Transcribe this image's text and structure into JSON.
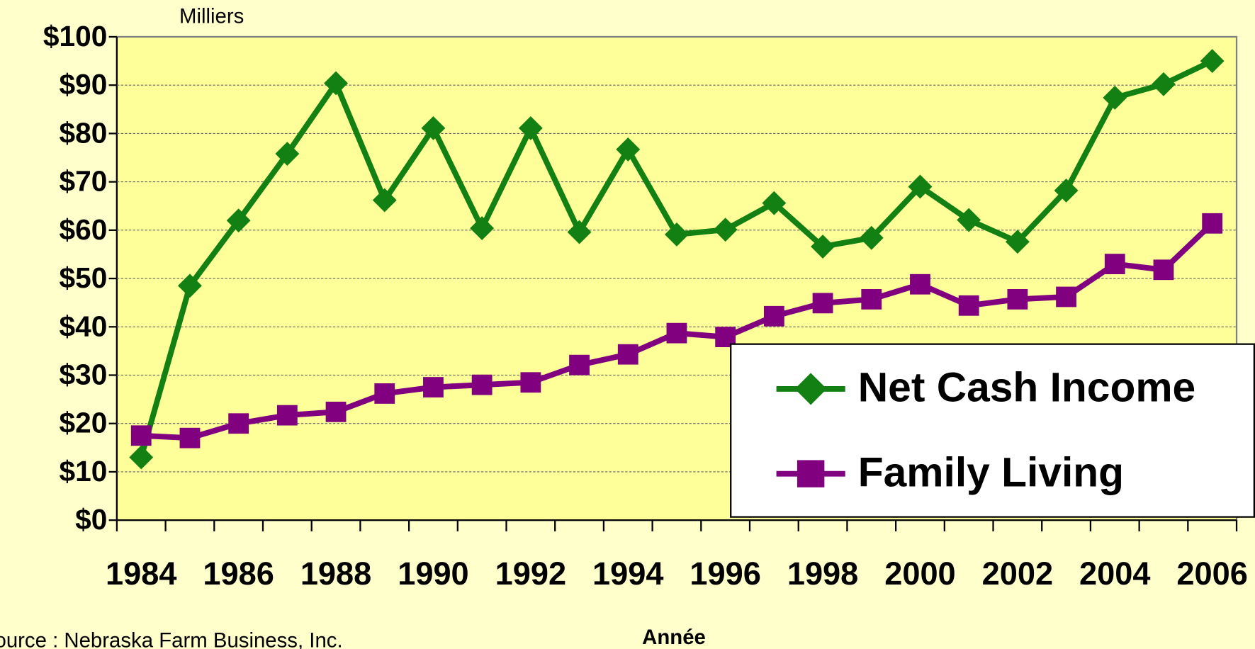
{
  "chart_data": {
    "type": "line",
    "y_axis_unit": "Milliers",
    "x_axis_label": "Année",
    "source": "Source : Nebraska Farm Business, Inc.",
    "categories": [
      "1984",
      null,
      "1986",
      null,
      "1988",
      null,
      "1990",
      null,
      "1992",
      null,
      "1994",
      null,
      "1996",
      null,
      "1998",
      null,
      "2000",
      null,
      "2002",
      null,
      "2004",
      null,
      "2006"
    ],
    "series": [
      {
        "name": "Net Cash Income",
        "color": "#138013",
        "marker": "diamond",
        "values": [
          13,
          48.5,
          62,
          75.8,
          90.4,
          66.2,
          81.1,
          60.4,
          81.1,
          59.6,
          76.7,
          59.1,
          60.1,
          65.6,
          56.6,
          58.4,
          69,
          62.1,
          57.6,
          68.2,
          87.4,
          90.2,
          95
        ]
      },
      {
        "name": "Family Living",
        "color": "#800080",
        "marker": "square",
        "values": [
          17.5,
          17,
          20,
          21.7,
          22.4,
          26.2,
          27.5,
          28,
          28.5,
          32.1,
          34.3,
          38.7,
          37.9,
          42.2,
          44.9,
          45.7,
          48.8,
          44.4,
          45.7,
          46.2,
          53,
          51.8,
          61.4
        ]
      }
    ],
    "ylim": [
      0,
      100
    ],
    "yticks": [
      {
        "value": 0,
        "label": "$0"
      },
      {
        "value": 10,
        "label": "$10"
      },
      {
        "value": 20,
        "label": "$20"
      },
      {
        "value": 30,
        "label": "$30"
      },
      {
        "value": 40,
        "label": "$40"
      },
      {
        "value": 50,
        "label": "$50"
      },
      {
        "value": 60,
        "label": "$60"
      },
      {
        "value": 70,
        "label": "$70"
      },
      {
        "value": 80,
        "label": "$80"
      },
      {
        "value": 90,
        "label": "$90"
      },
      {
        "value": 100,
        "label": "$100"
      }
    ],
    "grid": true,
    "legend": "lower right"
  }
}
